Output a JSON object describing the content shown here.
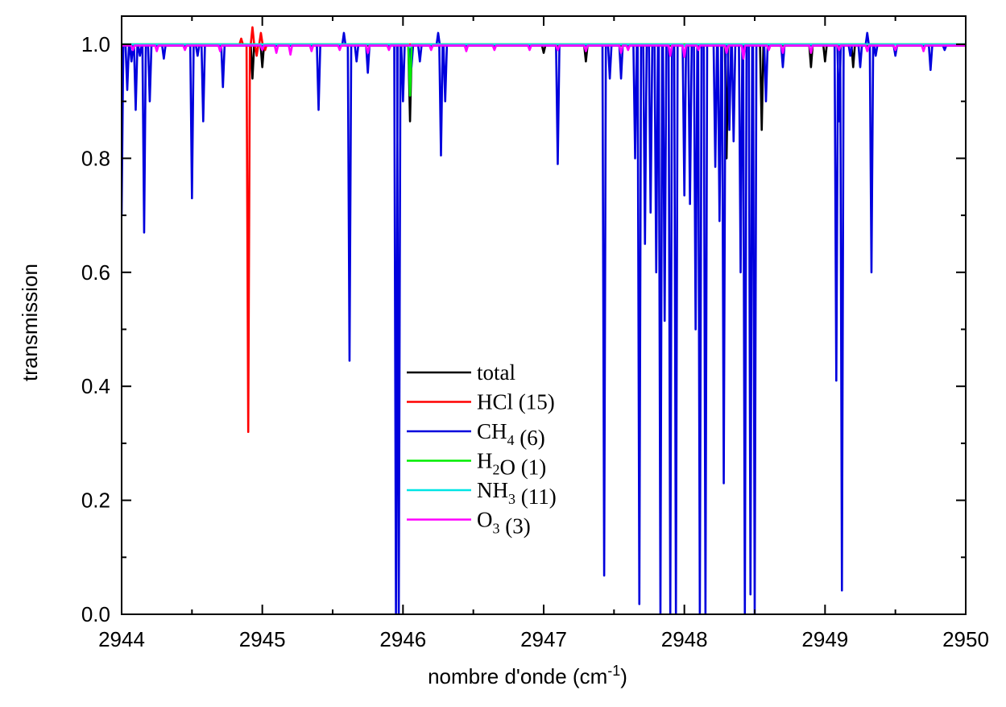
{
  "chart_data": {
    "type": "line",
    "title": "",
    "xlabel": "nombre d'onde (cm",
    "xlabel_sup": "-1",
    "xlabel_close": ")",
    "ylabel": "transmission",
    "xlim": [
      2944,
      2950
    ],
    "ylim": [
      0.0,
      1.05
    ],
    "x_ticks": [
      "2944",
      "2945",
      "2946",
      "2947",
      "2948",
      "2949",
      "2950"
    ],
    "y_ticks": [
      "0.0",
      "0.2",
      "0.4",
      "0.6",
      "0.8",
      "1.0"
    ],
    "grid": false,
    "legend_position": "center",
    "series": [
      {
        "name": "total",
        "formula": [
          {
            "t": "total"
          }
        ],
        "color": "#000000",
        "baseline": 0.998,
        "points": [
          [
            2947.0,
            0.985
          ],
          [
            2947.3,
            0.97
          ],
          [
            2948.3,
            0.8
          ],
          [
            2948.55,
            0.85
          ],
          [
            2948.9,
            0.96
          ],
          [
            2949.0,
            0.97
          ],
          [
            2949.2,
            0.96
          ],
          [
            2949.5,
            0.985
          ],
          [
            2946.05,
            0.865
          ],
          [
            2944.93,
            0.94
          ],
          [
            2945.0,
            0.96
          ]
        ]
      },
      {
        "name": "HCl (15)",
        "formula": [
          {
            "t": "HCl (15)"
          }
        ],
        "color": "#ff0000",
        "baseline": 1.0,
        "points": [
          [
            2944.85,
            1.01
          ],
          [
            2944.9,
            0.32
          ],
          [
            2944.93,
            1.03
          ],
          [
            2944.96,
            0.98
          ],
          [
            2944.99,
            1.02
          ],
          [
            2945.02,
            0.99
          ]
        ]
      },
      {
        "name": "CH4 (6)",
        "formula": [
          {
            "t": "CH"
          },
          {
            "s": "4"
          },
          {
            "t": " (6)"
          }
        ],
        "color": "#0000dd",
        "baseline": 0.998,
        "points": [
          [
            2944.0,
            0.7
          ],
          [
            2944.04,
            0.92
          ],
          [
            2944.07,
            0.97
          ],
          [
            2944.1,
            0.885
          ],
          [
            2944.13,
            0.98
          ],
          [
            2944.16,
            0.67
          ],
          [
            2944.2,
            0.9
          ],
          [
            2944.3,
            0.975
          ],
          [
            2944.5,
            0.73
          ],
          [
            2944.54,
            0.98
          ],
          [
            2944.58,
            0.865
          ],
          [
            2944.72,
            0.925
          ],
          [
            2945.4,
            0.885
          ],
          [
            2945.58,
            1.02
          ],
          [
            2945.62,
            0.445
          ],
          [
            2945.67,
            0.97
          ],
          [
            2945.75,
            0.95
          ],
          [
            2945.84,
            0.998
          ],
          [
            2945.95,
            0.0
          ],
          [
            2945.97,
            0.0
          ],
          [
            2946.0,
            0.9
          ],
          [
            2946.06,
            0.96
          ],
          [
            2946.12,
            0.97
          ],
          [
            2946.25,
            1.02
          ],
          [
            2946.27,
            0.805
          ],
          [
            2946.3,
            0.9
          ],
          [
            2947.1,
            0.79
          ],
          [
            2947.43,
            0.068
          ],
          [
            2947.47,
            0.94
          ],
          [
            2947.55,
            0.94
          ],
          [
            2947.65,
            0.8
          ],
          [
            2947.68,
            0.018
          ],
          [
            2947.72,
            0.65
          ],
          [
            2947.76,
            0.705
          ],
          [
            2947.8,
            0.6
          ],
          [
            2947.83,
            0.0
          ],
          [
            2947.86,
            0.515
          ],
          [
            2947.9,
            0.0
          ],
          [
            2947.94,
            0.0
          ],
          [
            2948.0,
            0.735
          ],
          [
            2948.04,
            0.72
          ],
          [
            2948.08,
            0.5
          ],
          [
            2948.11,
            0.0
          ],
          [
            2948.15,
            0.0
          ],
          [
            2948.22,
            0.785
          ],
          [
            2948.25,
            0.69
          ],
          [
            2948.28,
            0.23
          ],
          [
            2948.32,
            0.85
          ],
          [
            2948.35,
            0.83
          ],
          [
            2948.4,
            0.6
          ],
          [
            2948.43,
            0.0
          ],
          [
            2948.47,
            0.035
          ],
          [
            2948.5,
            0.0
          ],
          [
            2948.58,
            0.9
          ],
          [
            2948.7,
            0.96
          ],
          [
            2949.08,
            0.41
          ],
          [
            2949.1,
            0.865
          ],
          [
            2949.12,
            0.042
          ],
          [
            2949.18,
            0.98
          ],
          [
            2949.25,
            0.96
          ],
          [
            2949.3,
            1.02
          ],
          [
            2949.33,
            0.6
          ],
          [
            2949.36,
            0.98
          ],
          [
            2949.5,
            0.98
          ],
          [
            2949.75,
            0.955
          ],
          [
            2949.85,
            0.99
          ]
        ]
      },
      {
        "name": "H2O (1)",
        "formula": [
          {
            "t": "H"
          },
          {
            "s": "2"
          },
          {
            "t": "O (1)"
          }
        ],
        "color": "#00ee00",
        "baseline": 1.0,
        "points": [
          [
            2946.05,
            0.91
          ]
        ]
      },
      {
        "name": "NH3 (11)",
        "formula": [
          {
            "t": "NH"
          },
          {
            "s": "3"
          },
          {
            "t": " (11)"
          }
        ],
        "color": "#00e5e5",
        "baseline": 1.0,
        "points": [
          [
            2946.05,
            0.995
          ],
          [
            2948.0,
            0.997
          ]
        ]
      },
      {
        "name": "O3 (3)",
        "formula": [
          {
            "t": "O"
          },
          {
            "s": "3"
          },
          {
            "t": " (3)"
          }
        ],
        "color": "#ff00ff",
        "baseline": 0.998,
        "points": [
          [
            2944.08,
            0.99
          ],
          [
            2944.25,
            0.988
          ],
          [
            2944.45,
            0.99
          ],
          [
            2944.7,
            0.988
          ],
          [
            2945.0,
            0.99
          ],
          [
            2945.1,
            0.985
          ],
          [
            2945.2,
            0.982
          ],
          [
            2945.35,
            0.988
          ],
          [
            2945.55,
            0.99
          ],
          [
            2945.75,
            0.985
          ],
          [
            2945.9,
            0.99
          ],
          [
            2946.2,
            0.99
          ],
          [
            2946.45,
            0.988
          ],
          [
            2946.65,
            0.99
          ],
          [
            2946.9,
            0.99
          ],
          [
            2947.1,
            0.99
          ],
          [
            2947.3,
            0.988
          ],
          [
            2947.55,
            0.985
          ],
          [
            2947.6,
            0.99
          ],
          [
            2947.9,
            0.98
          ],
          [
            2948.0,
            0.978
          ],
          [
            2948.1,
            0.99
          ],
          [
            2948.3,
            0.985
          ],
          [
            2948.42,
            0.975
          ],
          [
            2948.6,
            0.99
          ],
          [
            2948.7,
            0.985
          ],
          [
            2948.9,
            0.985
          ],
          [
            2949.1,
            0.99
          ],
          [
            2949.3,
            0.988
          ],
          [
            2949.5,
            0.99
          ],
          [
            2949.7,
            0.988
          ]
        ]
      }
    ]
  }
}
